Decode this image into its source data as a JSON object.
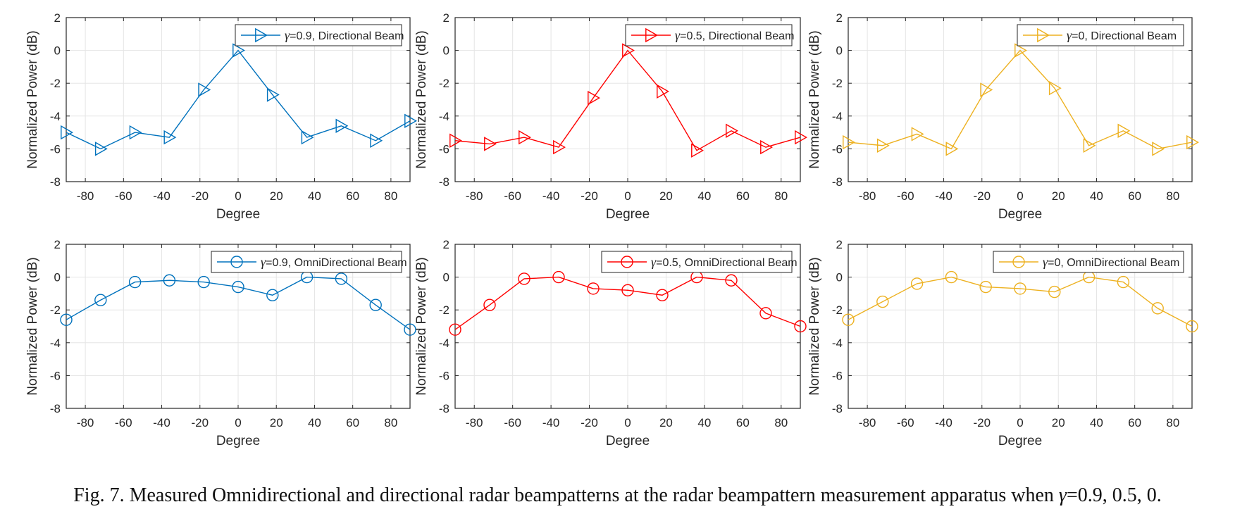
{
  "caption": {
    "prefix": "Fig. 7. Measured Omnidirectional and directional radar beampatterns at the radar beampattern measurement apparatus when ",
    "symbol": "γ",
    "suffix": "=0.9, 0.5, 0."
  },
  "colors": {
    "blue": "#0072BD",
    "red": "#FF0000",
    "yellow": "#EDB120",
    "grid": "#e5e5e5",
    "axis": "#262626"
  },
  "chart_data": [
    {
      "type": "line",
      "marker": "triangle-right",
      "color": "#0072BD",
      "legend": {
        "symbol": "γ",
        "text": "=0.9, Directional Beam"
      },
      "xlabel": "Degree",
      "ylabel": "Normalized Power (dB)",
      "xlim": [
        -90,
        90
      ],
      "ylim": [
        -8,
        2
      ],
      "xticks": [
        -80,
        -60,
        -40,
        -20,
        0,
        20,
        40,
        60,
        80
      ],
      "yticks": [
        2,
        0,
        -2,
        -4,
        -6,
        -8
      ],
      "x": [
        -90,
        -72,
        -54,
        -36,
        -18,
        0,
        18,
        36,
        54,
        72,
        90
      ],
      "y": [
        -5.0,
        -6.0,
        -5.0,
        -5.3,
        -2.4,
        0.0,
        -2.7,
        -5.3,
        -4.6,
        -5.5,
        -4.3
      ]
    },
    {
      "type": "line",
      "marker": "triangle-right",
      "color": "#FF0000",
      "legend": {
        "symbol": "γ",
        "text": "=0.5, Directional Beam"
      },
      "xlabel": "Degree",
      "ylabel": "Normalized Power (dB)",
      "xlim": [
        -90,
        90
      ],
      "ylim": [
        -8,
        2
      ],
      "xticks": [
        -80,
        -60,
        -40,
        -20,
        0,
        20,
        40,
        60,
        80
      ],
      "yticks": [
        2,
        0,
        -2,
        -4,
        -6,
        -8
      ],
      "x": [
        -90,
        -72,
        -54,
        -36,
        -18,
        0,
        18,
        36,
        54,
        72,
        90
      ],
      "y": [
        -5.5,
        -5.7,
        -5.3,
        -5.9,
        -2.9,
        0.0,
        -2.5,
        -6.1,
        -4.9,
        -5.9,
        -5.3
      ]
    },
    {
      "type": "line",
      "marker": "triangle-right",
      "color": "#EDB120",
      "legend": {
        "symbol": "γ",
        "text": "=0, Directional Beam"
      },
      "xlabel": "Degree",
      "ylabel": "Normalized Power (dB)",
      "xlim": [
        -90,
        90
      ],
      "ylim": [
        -8,
        2
      ],
      "xticks": [
        -80,
        -60,
        -40,
        -20,
        0,
        20,
        40,
        60,
        80
      ],
      "yticks": [
        2,
        0,
        -2,
        -4,
        -6,
        -8
      ],
      "x": [
        -90,
        -72,
        -54,
        -36,
        -18,
        0,
        18,
        36,
        54,
        72,
        90
      ],
      "y": [
        -5.6,
        -5.8,
        -5.1,
        -6.0,
        -2.4,
        0.0,
        -2.3,
        -5.8,
        -4.9,
        -6.0,
        -5.6
      ]
    },
    {
      "type": "line",
      "marker": "circle",
      "color": "#0072BD",
      "legend": {
        "symbol": "γ",
        "text": "=0.9, OmniDirectional Beam"
      },
      "xlabel": "Degree",
      "ylabel": "Normalized Power (dB)",
      "xlim": [
        -90,
        90
      ],
      "ylim": [
        -8,
        2
      ],
      "xticks": [
        -80,
        -60,
        -40,
        -20,
        0,
        20,
        40,
        60,
        80
      ],
      "yticks": [
        2,
        0,
        -2,
        -4,
        -6,
        -8
      ],
      "x": [
        -90,
        -72,
        -54,
        -36,
        -18,
        0,
        18,
        36,
        54,
        72,
        90
      ],
      "y": [
        -2.6,
        -1.4,
        -0.3,
        -0.2,
        -0.3,
        -0.6,
        -1.1,
        0.0,
        -0.1,
        -1.7,
        -3.2
      ]
    },
    {
      "type": "line",
      "marker": "circle",
      "color": "#FF0000",
      "legend": {
        "symbol": "γ",
        "text": "=0.5, OmniDirectional Beam"
      },
      "xlabel": "Degree",
      "ylabel": "Normalized Power (dB)",
      "xlim": [
        -90,
        90
      ],
      "ylim": [
        -8,
        2
      ],
      "xticks": [
        -80,
        -60,
        -40,
        -20,
        0,
        20,
        40,
        60,
        80
      ],
      "yticks": [
        2,
        0,
        -2,
        -4,
        -6,
        -8
      ],
      "x": [
        -90,
        -72,
        -54,
        -36,
        -18,
        0,
        18,
        36,
        54,
        72,
        90
      ],
      "y": [
        -3.2,
        -1.7,
        -0.1,
        0.0,
        -0.7,
        -0.8,
        -1.1,
        0.0,
        -0.2,
        -2.2,
        -3.0
      ]
    },
    {
      "type": "line",
      "marker": "circle",
      "color": "#EDB120",
      "legend": {
        "symbol": "γ",
        "text": "=0, OmniDirectional Beam"
      },
      "xlabel": "Degree",
      "ylabel": "Normalized Power (dB)",
      "xlim": [
        -90,
        90
      ],
      "ylim": [
        -8,
        2
      ],
      "xticks": [
        -80,
        -60,
        -40,
        -20,
        0,
        20,
        40,
        60,
        80
      ],
      "yticks": [
        2,
        0,
        -2,
        -4,
        -6,
        -8
      ],
      "x": [
        -90,
        -72,
        -54,
        -36,
        -18,
        0,
        18,
        36,
        54,
        72,
        90
      ],
      "y": [
        -2.6,
        -1.5,
        -0.4,
        0.0,
        -0.6,
        -0.7,
        -0.9,
        0.0,
        -0.3,
        -1.9,
        -3.0
      ]
    }
  ]
}
